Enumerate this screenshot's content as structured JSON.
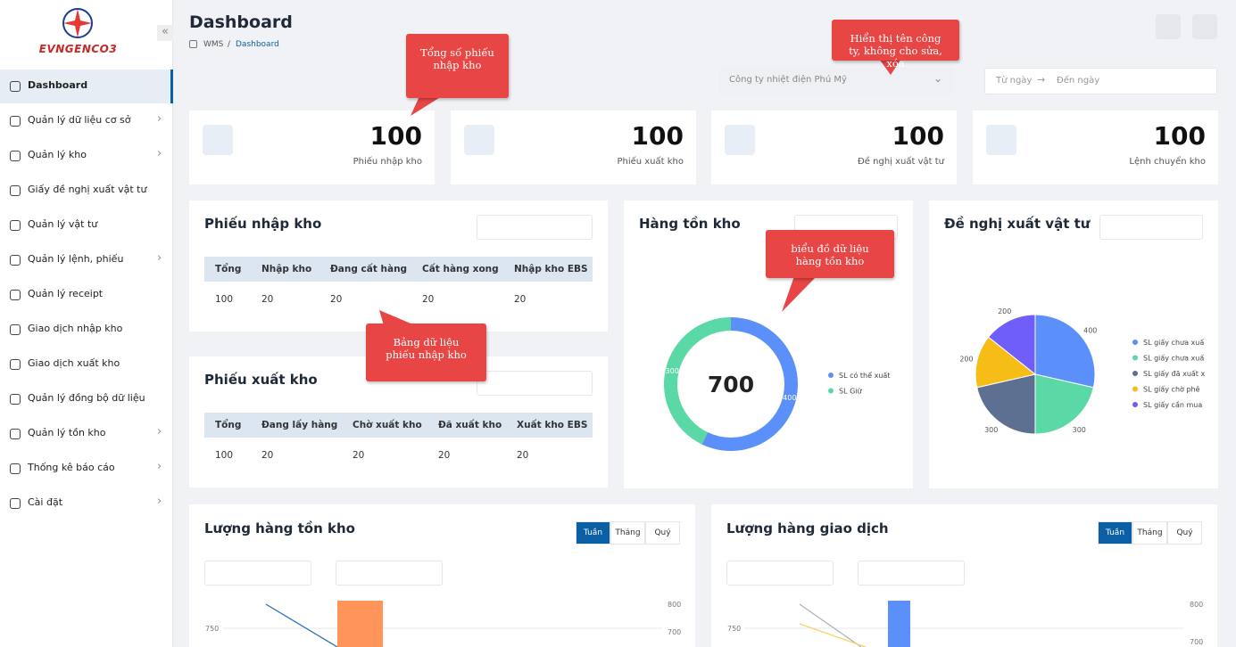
{
  "sidebar": {
    "logo": "EVNGENCO3",
    "active": 0,
    "menu": [
      {
        "label": "Dashboard",
        "expandable": false
      },
      {
        "label": "Quản lý dữ liệu cơ sở",
        "expandable": true
      },
      {
        "label": "Quản lý kho",
        "expandable": true
      },
      {
        "label": "Giấy đề nghị xuất vật tư",
        "expandable": false
      },
      {
        "label": "Quản lý vật tư",
        "expandable": false
      },
      {
        "label": "Quản lý lệnh, phiếu",
        "expandable": true
      },
      {
        "label": "Quản lý receipt",
        "expandable": false
      },
      {
        "label": "Giao dịch nhập kho",
        "expandable": false
      },
      {
        "label": "Giao dịch xuất kho",
        "expandable": false
      },
      {
        "label": "Quản lý đồng bộ dữ liệu",
        "expandable": false
      },
      {
        "label": "Quản lý tồn kho",
        "expandable": true
      },
      {
        "label": "Thống kê báo cáo",
        "expandable": true
      },
      {
        "label": "Cài đặt",
        "expandable": true
      }
    ]
  },
  "header": {
    "title": "Dashboard",
    "breadcrumb": [
      "WMS",
      "Dashboard"
    ],
    "company": "Công ty nhiệt điện Phú Mỹ",
    "date_from": "Từ ngày",
    "date_to": "Đến ngày"
  },
  "callouts": [
    "Tổng số phiếu nhập kho",
    "Hiển thị tên công ty, không cho sửa, xóa",
    "biểu đồ dữ liệu hàng tồn kho",
    "Bảng dữ liệu phiếu nhập kho"
  ],
  "stats": [
    {
      "value": 100,
      "label": "Phiếu nhập kho"
    },
    {
      "value": 100,
      "label": "Phiếu xuất kho"
    },
    {
      "value": 100,
      "label": "Đề nghị xuất vật tư"
    },
    {
      "value": 100,
      "label": "Lệnh chuyển kho"
    }
  ],
  "import_table": {
    "title": "Phiếu nhập kho",
    "headers": [
      "Tổng",
      "Nhập kho",
      "Đang cất hàng",
      "Cất hàng xong",
      "Nhập kho EBS"
    ],
    "rows": [
      [
        100,
        20,
        20,
        20,
        20
      ]
    ]
  },
  "export_table": {
    "title": "Phiếu xuất kho",
    "headers": [
      "Tổng",
      "Đang lấy hàng",
      "Chờ xuất kho",
      "Đã xuất kho",
      "Xuất kho EBS"
    ],
    "rows": [
      [
        100,
        20,
        20,
        20,
        20
      ]
    ]
  },
  "inventory_chart": {
    "type": "donut",
    "title": "Hàng tồn kho",
    "total": 700,
    "series": [
      {
        "name": "SL có thể xuất",
        "value": 400,
        "color": "#5b8ff9"
      },
      {
        "name": "SL Giữ",
        "value": 300,
        "color": "#5ad8a6"
      }
    ]
  },
  "request_chart": {
    "type": "pie",
    "title": "Đề nghị xuất vật tư",
    "series": [
      {
        "name": "SL giấy chưa xuấ",
        "value": 400,
        "color": "#5b8ff9"
      },
      {
        "name": "SL giấy chưa xuấ",
        "value": 300,
        "color": "#5ad8a6"
      },
      {
        "name": "SL giấy đã xuất x",
        "value": 300,
        "color": "#5d7092"
      },
      {
        "name": "SL giấy chờ phê",
        "value": 200,
        "color": "#f6bd16"
      },
      {
        "name": "SL giấy cần mua",
        "value": 200,
        "color": "#6f5ef9"
      }
    ]
  },
  "stock_chart": {
    "title": "Lượng hàng tồn kho",
    "tabs": [
      "Tuần",
      "Tháng",
      "Quý"
    ],
    "active_tab": 0,
    "yticks": [
      750
    ],
    "y2ticks": [
      800,
      700
    ]
  },
  "transaction_chart": {
    "title": "Lượng hàng giao dịch",
    "tabs": [
      "Tuần",
      "Tháng",
      "Quý"
    ],
    "active_tab": 0,
    "yticks": [
      750
    ],
    "y2ticks": [
      800,
      700
    ]
  }
}
